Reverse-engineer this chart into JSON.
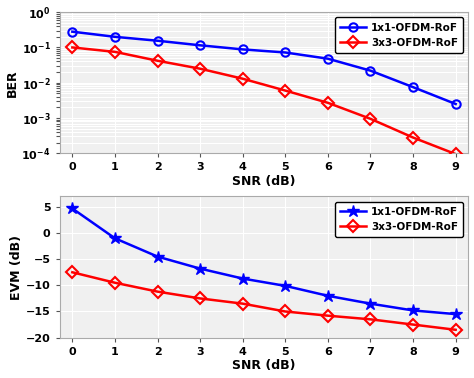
{
  "snr": [
    0,
    1,
    2,
    3,
    4,
    5,
    6,
    7,
    8,
    9
  ],
  "ber_1x1": [
    0.28,
    0.2,
    0.155,
    0.115,
    0.088,
    0.072,
    0.048,
    0.022,
    0.0075,
    0.0025
  ],
  "ber_3x3": [
    0.1,
    0.075,
    0.042,
    0.025,
    0.013,
    0.006,
    0.0027,
    0.00095,
    0.00028,
    9.5e-05
  ],
  "evm_1x1": [
    4.7,
    -1.0,
    -4.5,
    -6.8,
    -8.7,
    -10.1,
    -12.0,
    -13.5,
    -14.8,
    -15.5
  ],
  "evm_3x3": [
    -7.5,
    -9.5,
    -11.2,
    -12.5,
    -13.5,
    -15.0,
    -15.8,
    -16.5,
    -17.5,
    -18.5
  ],
  "color_1x1": "#0000FF",
  "color_3x3": "#FF0000",
  "label_1x1": "1x1-OFDM-RoF",
  "label_3x3": "3x3-OFDM-RoF",
  "ber_ylabel": "BER",
  "evm_ylabel": "EVM (dB)",
  "xlabel": "SNR (dB)",
  "ber_ylim": [
    0.0001,
    1.0
  ],
  "evm_ylim": [
    -20,
    7
  ],
  "evm_yticks": [
    -20,
    -15,
    -10,
    -5,
    0,
    5
  ],
  "xlim": [
    -0.3,
    9.3
  ],
  "xticks": [
    0,
    1,
    2,
    3,
    4,
    5,
    6,
    7,
    8,
    9
  ],
  "plot_bg_color": "#f0f0f0",
  "grid_color": "#ffffff",
  "fig_bg_color": "#ffffff",
  "marker_size_circle": 6,
  "marker_size_diamond": 6,
  "marker_size_star": 9,
  "linewidth": 1.8
}
